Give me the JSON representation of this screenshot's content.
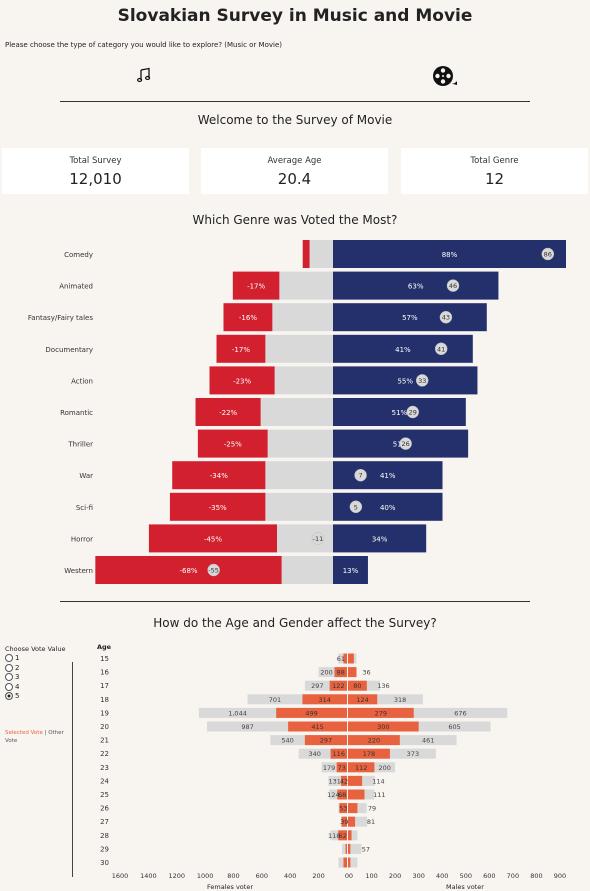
{
  "header": {
    "title": "Slovakian Survey in Music and Movie",
    "question": "Please choose the type of category you would like to explore? (Music or Movie)",
    "music_icon": "music-note-icon",
    "movie_icon": "film-reel-icon"
  },
  "welcome_title": "Welcome to the Survey of Movie",
  "kpis": [
    {
      "label": "Total Survey",
      "value": "12,010"
    },
    {
      "label": "Average Age",
      "value": "20.4"
    },
    {
      "label": "Total Genre",
      "value": "12"
    }
  ],
  "genre_section_title": "Which Genre was Voted the Most?",
  "age_section_title": "How do the Age and Gender affect the Survey?",
  "controls": {
    "title": "Choose Vote Value",
    "options": [
      "1",
      "2",
      "3",
      "4",
      "5"
    ],
    "selected": "5",
    "legend_selected": "Selected Vote",
    "legend_sep": "|",
    "legend_other": "Other Vote"
  },
  "colors": {
    "negative": "#d2202f",
    "neutral": "#d9d9d9",
    "positive": "#24306b",
    "selected": "#e8623f",
    "other": "#d9d9d9",
    "background": "#f8f5f1"
  },
  "chart_data": [
    {
      "type": "bar",
      "title": "Which Genre was Voted the Most?",
      "categories": [
        "Comedy",
        "Animated",
        "Fantasy/Fairy tales",
        "Documentary",
        "Action",
        "Romantic",
        "Thriller",
        "War",
        "Sci-fi",
        "Horror",
        "Western"
      ],
      "series": [
        {
          "name": "negative",
          "values": [
            3,
            20,
            21,
            21,
            28,
            28,
            30,
            40,
            41,
            55,
            80
          ]
        },
        {
          "name": "neutral",
          "values": [
            10,
            23,
            26,
            29,
            25,
            31,
            28,
            29,
            29,
            24,
            22
          ]
        },
        {
          "name": "positive",
          "values": [
            100,
            71,
            66,
            60,
            62,
            57,
            58,
            47,
            47,
            40,
            15
          ]
        }
      ],
      "pct_labels": [
        "",
        "-17%",
        "-16%",
        "-17%",
        "-23%",
        "-22%",
        "-25%",
        "-34%",
        "-35%",
        "-45%",
        "-68%"
      ],
      "pos_labels": [
        "88%",
        "63%",
        "57%",
        "41%",
        "55%",
        "51%",
        "51%",
        "41%",
        "40%",
        "34%",
        "13%"
      ],
      "avg_labels": [
        "86",
        "46",
        "43",
        "41",
        "33",
        "29",
        "26",
        "7",
        "5",
        "-11",
        "-55"
      ],
      "avg_values": [
        86,
        46,
        43,
        41,
        33,
        29,
        26,
        7,
        5,
        -11,
        -55
      ]
    },
    {
      "type": "bar",
      "title": "How do the Age and Gender affect the Survey?",
      "ylabel": "Age",
      "xlabel_left": "Females voter",
      "xlabel_right": "Males voter",
      "ages": [
        "15",
        "16",
        "17",
        "18",
        "19",
        "20",
        "21",
        "22",
        "23",
        "24",
        "25",
        "26",
        "27",
        "28",
        "29",
        "30"
      ],
      "female_other": [
        61,
        200,
        297,
        701,
        1044,
        987,
        540,
        340,
        179,
        131,
        124,
        60,
        40,
        118,
        35,
        60
      ],
      "female_selected": [
        25,
        88,
        122,
        314,
        499,
        415,
        297,
        116,
        73,
        42,
        68,
        53,
        39,
        62,
        10,
        25
      ],
      "male_other": [
        36,
        36,
        136,
        318,
        676,
        605,
        461,
        373,
        200,
        114,
        111,
        79,
        81,
        40,
        57,
        40
      ],
      "male_selected": [
        25,
        36,
        80,
        124,
        279,
        300,
        220,
        178,
        112,
        60,
        70,
        40,
        30,
        15,
        10,
        10
      ],
      "female_other_labels": [
        "61",
        "200",
        "297",
        "701",
        "1,044",
        "987",
        "540",
        "340",
        "179",
        "131",
        "124",
        "",
        "",
        "118",
        "",
        ""
      ],
      "female_selected_labels": [
        "",
        "88",
        "122",
        "314",
        "499",
        "415",
        "297",
        "116",
        "73",
        "42",
        "68",
        "53",
        "39",
        "62",
        "",
        ""
      ],
      "male_other_labels": [
        "",
        "36",
        "136",
        "318",
        "676",
        "605",
        "461",
        "373",
        "200",
        "114",
        "111",
        "79",
        "81",
        "",
        "57",
        ""
      ],
      "male_selected_labels": [
        "",
        "",
        "80",
        "124",
        "279",
        "300",
        "220",
        "178",
        "112",
        "",
        "",
        "",
        "",
        "",
        "",
        ""
      ],
      "x_ticks_left": [
        "1600",
        "1400",
        "1200",
        "1000",
        "800",
        "600",
        "400",
        "200",
        "0"
      ],
      "x_ticks_right": [
        "0",
        "100",
        "200",
        "300",
        "400",
        "500",
        "600",
        "700",
        "800",
        "900"
      ],
      "xlim_left": [
        1600,
        0
      ],
      "xlim_right": [
        0,
        900
      ]
    }
  ]
}
